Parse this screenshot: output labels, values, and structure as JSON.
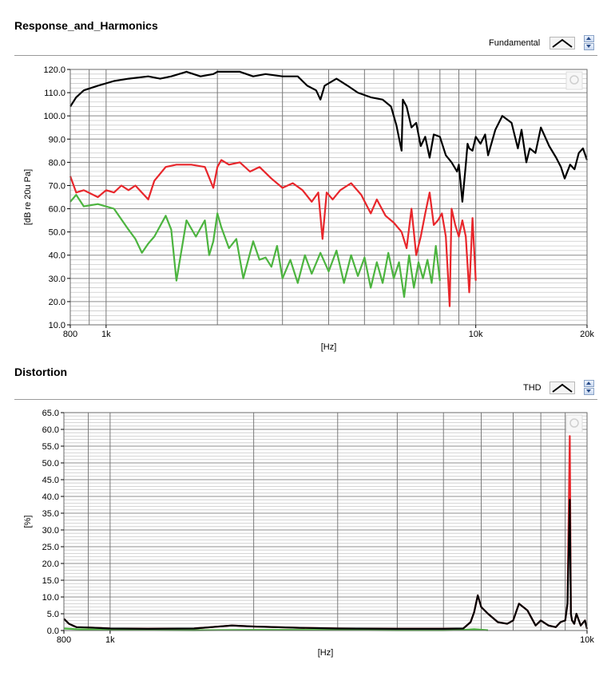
{
  "panels": [
    {
      "title": "Response_and_Harmonics",
      "legend_label": "Fundamental",
      "legend_icon": "peak-curve-icon"
    },
    {
      "title": "Distortion",
      "legend_label": "THD",
      "legend_icon": "peak-curve-icon"
    }
  ],
  "chart_data": [
    {
      "type": "line",
      "xscale": "log",
      "xlim": [
        800,
        20000
      ],
      "ylim": [
        10,
        120
      ],
      "xlabel": "[Hz]",
      "ylabel": "[dB re 20u Pa]",
      "x_ticks": [
        800,
        1000,
        10000,
        20000
      ],
      "x_tick_labels": [
        "800",
        "1k",
        "10k",
        "20k"
      ],
      "y_ticks": [
        10,
        20,
        30,
        40,
        50,
        60,
        70,
        80,
        90,
        100,
        110,
        120
      ],
      "y_tick_labels": [
        "10.0",
        "20.0",
        "30.0",
        "40.0",
        "50.0",
        "60.0",
        "70.0",
        "80.0",
        "90.0",
        "100.0",
        "110.0",
        "120.0"
      ],
      "grid": true,
      "colors": [
        "#000000",
        "#e8262b",
        "#4cb43f"
      ],
      "series": [
        {
          "color": "#000000",
          "x": [
            800,
            830,
            870,
            950,
            1050,
            1150,
            1300,
            1400,
            1500,
            1650,
            1800,
            1950,
            2000,
            2100,
            2300,
            2500,
            2700,
            3000,
            3300,
            3500,
            3700,
            3800,
            3900,
            4200,
            4500,
            4800,
            5200,
            5600,
            5900,
            6100,
            6300,
            6350,
            6500,
            6700,
            6900,
            7100,
            7300,
            7500,
            7700,
            8000,
            8300,
            8600,
            8900,
            9000,
            9200,
            9400,
            9500,
            9600,
            9800,
            10000,
            10300,
            10600,
            10800,
            11300,
            11800,
            12500,
            13000,
            13300,
            13700,
            14000,
            14500,
            15000,
            15800,
            16500,
            17000,
            17400,
            18000,
            18500,
            19000,
            19500,
            20000
          ],
          "y": [
            104,
            108,
            111,
            113,
            115,
            116,
            117,
            116,
            117,
            119,
            117,
            118,
            119,
            119,
            119,
            117,
            118,
            117,
            117,
            113,
            111,
            107,
            113,
            116,
            113,
            110,
            108,
            107,
            104,
            96,
            85,
            107,
            104,
            95,
            97,
            87,
            91,
            82,
            92,
            91,
            83,
            80,
            76,
            79,
            63,
            79,
            88,
            86,
            85,
            91,
            88,
            92,
            83,
            94,
            100,
            97,
            86,
            94,
            80,
            86,
            84,
            95,
            87,
            82,
            78,
            73,
            79,
            77,
            84,
            86,
            81
          ]
        },
        {
          "color": "#e8262b",
          "x": [
            800,
            830,
            870,
            950,
            1000,
            1050,
            1100,
            1150,
            1200,
            1300,
            1350,
            1450,
            1550,
            1700,
            1850,
            1950,
            2000,
            2050,
            2150,
            2300,
            2450,
            2600,
            2800,
            3000,
            3200,
            3400,
            3600,
            3750,
            3850,
            3950,
            4100,
            4300,
            4600,
            4900,
            5200,
            5400,
            5700,
            6000,
            6300,
            6500,
            6700,
            6900,
            7100,
            7300,
            7500,
            7700,
            7900,
            8100,
            8300,
            8500,
            8600,
            8800,
            9000,
            9200,
            9400,
            9600,
            9800,
            10000
          ],
          "y": [
            74,
            67,
            68,
            65,
            68,
            67,
            70,
            68,
            70,
            64,
            72,
            78,
            79,
            79,
            78,
            69,
            78,
            81,
            79,
            80,
            76,
            78,
            73,
            69,
            71,
            68,
            63,
            67,
            47,
            67,
            64,
            68,
            71,
            66,
            58,
            64,
            57,
            54,
            50,
            43,
            60,
            40,
            48,
            58,
            67,
            53,
            55,
            58,
            48,
            18,
            60,
            53,
            48,
            55,
            48,
            24,
            56,
            29
          ]
        },
        {
          "color": "#4cb43f",
          "x": [
            800,
            830,
            870,
            950,
            1050,
            1150,
            1200,
            1250,
            1300,
            1350,
            1450,
            1500,
            1550,
            1650,
            1750,
            1850,
            1900,
            1950,
            2000,
            2050,
            2150,
            2250,
            2350,
            2500,
            2600,
            2700,
            2800,
            2900,
            3000,
            3150,
            3300,
            3450,
            3600,
            3800,
            4000,
            4200,
            4400,
            4600,
            4800,
            5000,
            5200,
            5400,
            5600,
            5800,
            6000,
            6200,
            6400,
            6600,
            6800,
            7000,
            7200,
            7400,
            7600,
            7800,
            8000
          ],
          "y": [
            63,
            66,
            61,
            62,
            60,
            51,
            47,
            41,
            45,
            48,
            57,
            51,
            29,
            55,
            48,
            55,
            40,
            46,
            58,
            52,
            43,
            47,
            30,
            46,
            38,
            39,
            35,
            44,
            30,
            38,
            28,
            40,
            32,
            41,
            33,
            42,
            28,
            40,
            31,
            39,
            26,
            37,
            28,
            41,
            30,
            37,
            22,
            40,
            26,
            37,
            30,
            38,
            28,
            44,
            29
          ]
        }
      ]
    },
    {
      "type": "line",
      "xscale": "log",
      "xlim": [
        800,
        10000
      ],
      "ylim": [
        0,
        65
      ],
      "xlabel": "[Hz]",
      "ylabel": "[%]",
      "x_ticks": [
        800,
        1000,
        10000
      ],
      "x_tick_labels": [
        "800",
        "1k",
        "10k"
      ],
      "y_ticks": [
        0,
        5,
        10,
        15,
        20,
        25,
        30,
        35,
        40,
        45,
        50,
        55,
        60,
        65
      ],
      "y_tick_labels": [
        "0.0",
        "5.0",
        "10.0",
        "15.0",
        "20.0",
        "25.0",
        "30.0",
        "35.0",
        "40.0",
        "45.0",
        "50.0",
        "55.0",
        "60.0",
        "65.0"
      ],
      "grid": true,
      "colors": [
        "#e8262b",
        "#4cb43f",
        "#000000"
      ],
      "series": [
        {
          "color": "#e8262b",
          "x": [
            800,
            820,
            850,
            900,
            1000,
            1200,
            1500,
            1800,
            2000,
            2500,
            3000,
            4000,
            5000,
            5500,
            5700,
            5800,
            5900,
            6000,
            6200,
            6500,
            6800,
            7000,
            7200,
            7500,
            7800,
            8000,
            8300,
            8600,
            8800,
            9000,
            9100,
            9200,
            9250,
            9300,
            9400,
            9500,
            9700,
            9900,
            10000
          ],
          "y": [
            3.5,
            2.0,
            1.0,
            0.9,
            0.6,
            0.5,
            0.6,
            1.5,
            1.2,
            0.8,
            0.6,
            0.5,
            0.5,
            0.6,
            2.5,
            5.5,
            10.5,
            7.0,
            5.0,
            2.5,
            2.0,
            3.0,
            8.0,
            6.0,
            1.5,
            3.0,
            1.5,
            1.0,
            2.5,
            3.0,
            8.0,
            58.0,
            5.0,
            3.0,
            2.0,
            5.0,
            1.5,
            3.0,
            0.5
          ]
        },
        {
          "color": "#4cb43f",
          "x": [
            800,
            850,
            1000,
            1500,
            2000,
            3000,
            4000,
            5000,
            5500,
            5800,
            6200
          ],
          "y": [
            0.6,
            0.4,
            0.2,
            0.1,
            0.2,
            0.2,
            0.1,
            0.1,
            0.2,
            0.4,
            0.1
          ]
        },
        {
          "color": "#000000",
          "x": [
            800,
            820,
            850,
            900,
            1000,
            1200,
            1500,
            1800,
            2000,
            2500,
            3000,
            4000,
            5000,
            5500,
            5700,
            5800,
            5900,
            6000,
            6200,
            6500,
            6800,
            7000,
            7200,
            7500,
            7800,
            8000,
            8300,
            8600,
            8800,
            9000,
            9100,
            9200,
            9250,
            9300,
            9400,
            9500,
            9700,
            9900,
            10000
          ],
          "y": [
            3.5,
            2.0,
            1.0,
            0.9,
            0.6,
            0.5,
            0.6,
            1.5,
            1.2,
            0.8,
            0.6,
            0.5,
            0.5,
            0.6,
            2.5,
            5.5,
            10.5,
            7.0,
            5.0,
            2.5,
            2.0,
            3.0,
            8.0,
            6.0,
            1.5,
            3.0,
            1.5,
            1.0,
            2.5,
            3.0,
            8.0,
            39.0,
            5.0,
            3.0,
            2.0,
            5.0,
            1.5,
            3.0,
            0.5
          ]
        }
      ]
    }
  ]
}
